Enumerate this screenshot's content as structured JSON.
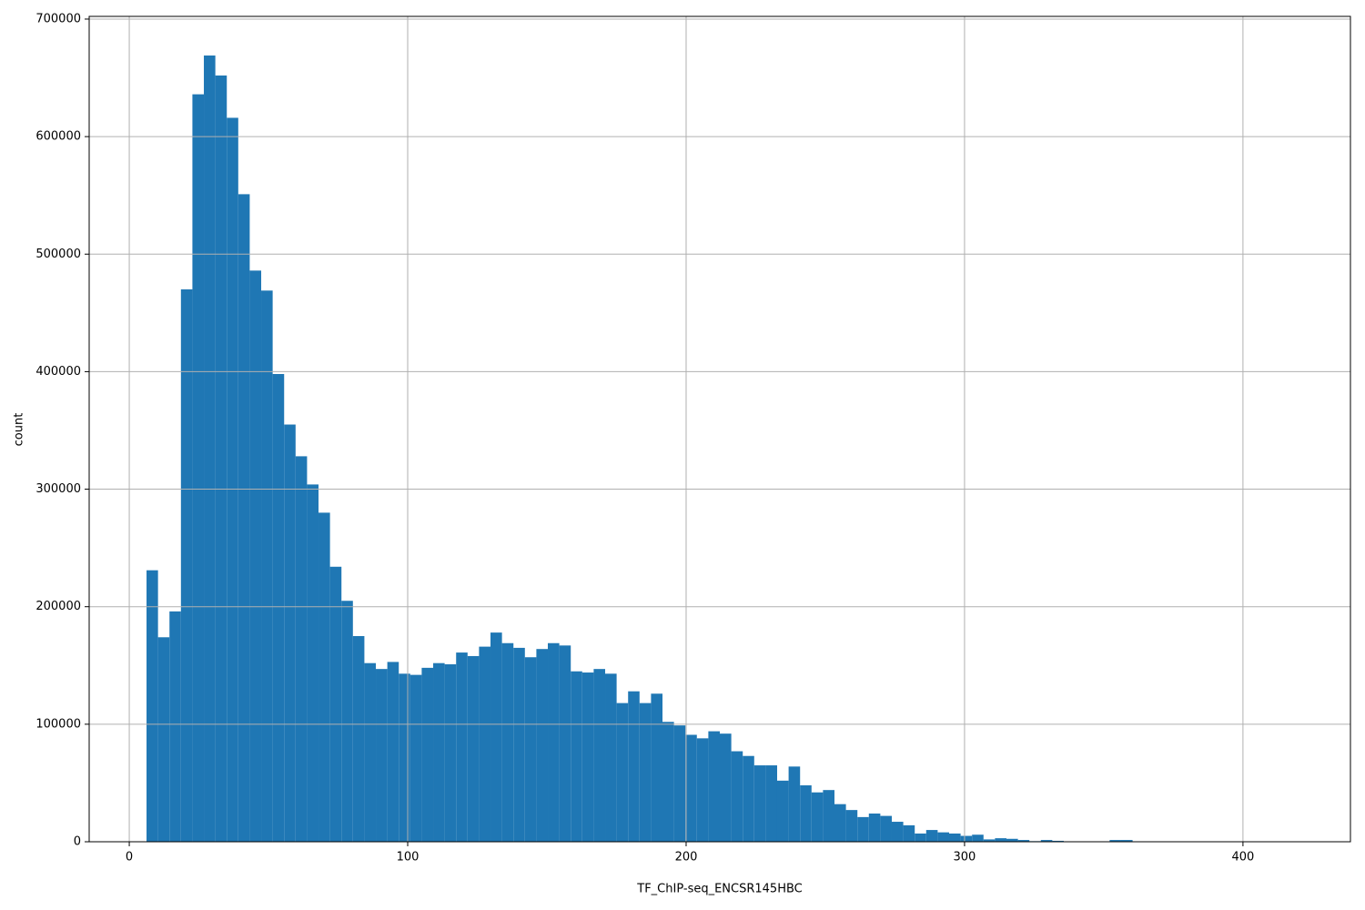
{
  "chart_data": {
    "type": "histogram",
    "x_label": "TF_ChIP-seq_ENCSR145HBC",
    "y_label": "count",
    "color": "#1f77b4",
    "grid": true,
    "bins": [
      6.2,
      10.32,
      14.44,
      18.55,
      22.67,
      26.79,
      30.91,
      35.03,
      39.14,
      43.26,
      47.38,
      51.5,
      55.62,
      59.73,
      63.85,
      67.97,
      72.09,
      76.21,
      80.32,
      84.44,
      88.56,
      92.68,
      96.8,
      100.91,
      105.03,
      109.15,
      113.27,
      117.39,
      121.5,
      125.62,
      129.74,
      133.86,
      137.98,
      142.09,
      146.21,
      150.33,
      154.45,
      158.57,
      162.68,
      166.8,
      170.92,
      175.04,
      179.16,
      183.27,
      187.39,
      191.51,
      195.63,
      199.75,
      203.86,
      207.98,
      212.1,
      216.22,
      220.34,
      224.45,
      228.57,
      232.69,
      236.81,
      240.93,
      245.04,
      249.16,
      253.28,
      257.4,
      261.52,
      265.63,
      269.75,
      273.87,
      277.99,
      282.11,
      286.22,
      290.34,
      294.46,
      298.58,
      302.7,
      306.81,
      310.93,
      315.05,
      319.17,
      323.29,
      327.4,
      331.52,
      335.64,
      339.76,
      343.88,
      347.99,
      352.11,
      356.23,
      360.35,
      364.47,
      368.58,
      372.7,
      376.82,
      380.94,
      385.06,
      389.17,
      393.29,
      397.41,
      401.53,
      405.65,
      409.76,
      413.88,
      418.0
    ],
    "counts": [
      231000,
      174000,
      196000,
      470000,
      636000,
      669000,
      652000,
      616000,
      551000,
      486000,
      469000,
      398000,
      355000,
      328000,
      304000,
      280000,
      234000,
      205000,
      175000,
      152000,
      147000,
      153000,
      143000,
      142000,
      148000,
      152000,
      151000,
      161000,
      158000,
      166000,
      178000,
      169000,
      165000,
      157000,
      164000,
      169000,
      167000,
      145000,
      144000,
      147000,
      143000,
      118000,
      128000,
      118000,
      126000,
      102000,
      99000,
      91000,
      88000,
      94000,
      92000,
      77000,
      73000,
      65000,
      65000,
      52000,
      64000,
      48000,
      42000,
      44000,
      32000,
      27000,
      21000,
      24000,
      22000,
      17000,
      14000,
      7000,
      10000,
      8000,
      7000,
      5000,
      6000,
      2000,
      3000,
      2500,
      1500,
      500,
      1500,
      800,
      200,
      100,
      100,
      100,
      1500,
      1500,
      100,
      100,
      100,
      100,
      100,
      100,
      100,
      100,
      100,
      100,
      100,
      100,
      100,
      100
    ],
    "xlim": [
      -14.4,
      438.6
    ],
    "ylim": [
      0,
      702300
    ],
    "xticks": [
      0,
      100,
      200,
      300,
      400
    ],
    "yticks": [
      0,
      100000,
      200000,
      300000,
      400000,
      500000,
      600000,
      700000
    ]
  }
}
